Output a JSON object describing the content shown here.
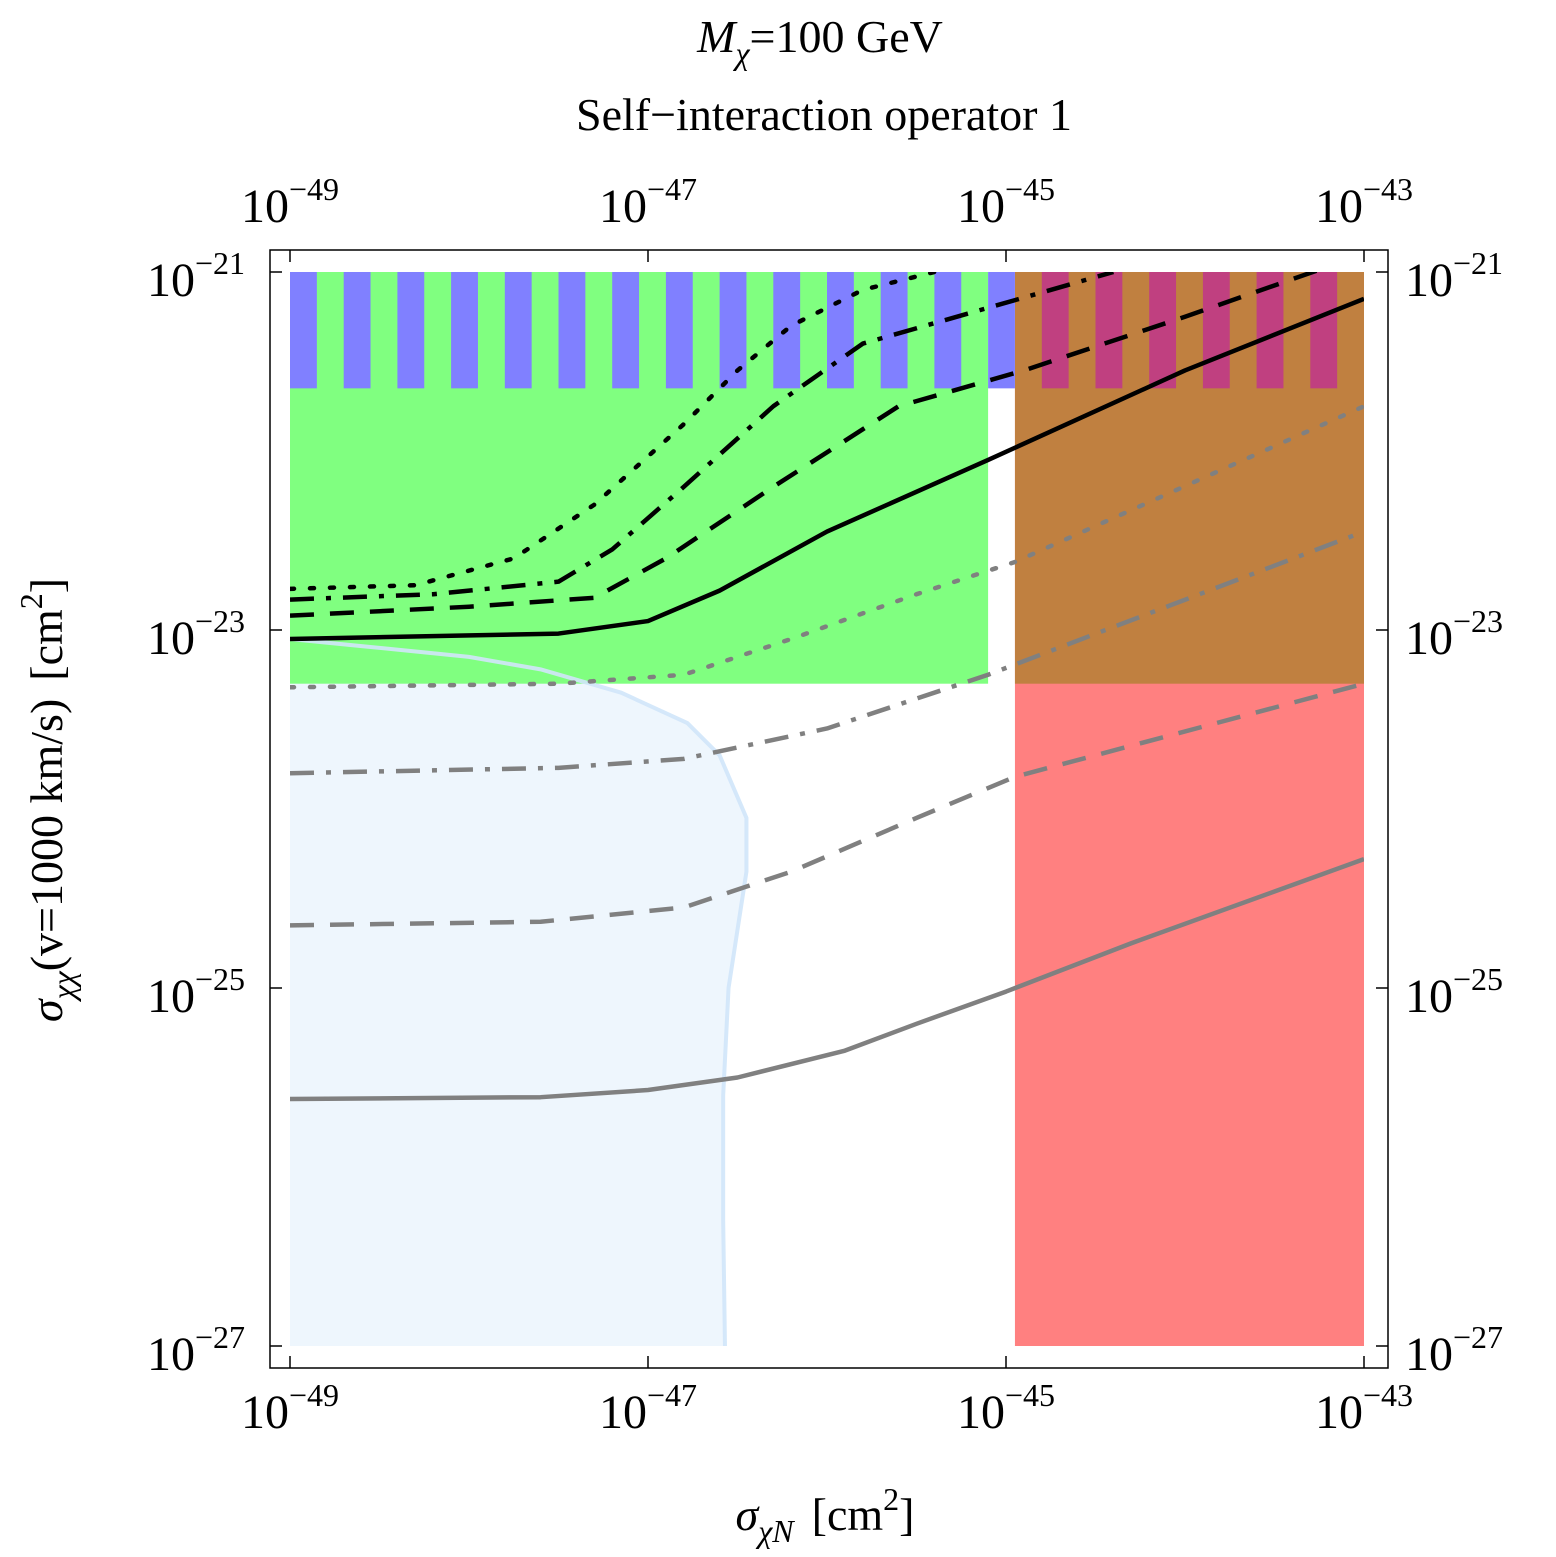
{
  "chart_data": {
    "type": "region_contour",
    "title_line1_prefix": "M",
    "title_line1_sub": "χ",
    "title_line1_suffix": "=100 GeV",
    "title_line2": "Self−interaction operator 1",
    "xlabel": {
      "symbol": "σ",
      "sub": "χN",
      "units_pre": "[cm",
      "units_sup": "2",
      "units_post": "]"
    },
    "ylabel": {
      "symbol": "σ",
      "sub": "χχ",
      "paren": "(v=1000 km/s)",
      "units_pre": "[cm",
      "units_sup": "2",
      "units_post": "]"
    },
    "x_scale": "log10",
    "y_scale": "log10",
    "xlim_log10": [
      -49,
      -43
    ],
    "ylim_log10": [
      -27,
      -21
    ],
    "x_ticks": [
      {
        "value": -49,
        "base": "10",
        "exp": "−49"
      },
      {
        "value": -47,
        "base": "10",
        "exp": "−47"
      },
      {
        "value": -45,
        "base": "10",
        "exp": "−45"
      },
      {
        "value": -43,
        "base": "10",
        "exp": "−43"
      }
    ],
    "y_ticks": [
      {
        "value": -21,
        "base": "10",
        "exp": "−21"
      },
      {
        "value": -23,
        "base": "10",
        "exp": "−23"
      },
      {
        "value": -25,
        "base": "10",
        "exp": "−25"
      },
      {
        "value": -27,
        "base": "10",
        "exp": "−27"
      }
    ],
    "colors": {
      "green": "#80ff80",
      "blue_stripe": "#8080ff",
      "red": "#ff8080",
      "brown": "#c08040",
      "magenta_stripe": "#c04080",
      "light_blue_fill": "#eef6fd",
      "light_blue_edge": "#d0e6fa",
      "black": "#000000",
      "gray": "#808080"
    },
    "regions": [
      {
        "name": "green-excluded-band",
        "x": [
          -49,
          -45.1
        ],
        "y": [
          -23.3,
          -21
        ],
        "color": "green"
      },
      {
        "name": "red-excluded-band",
        "x": [
          -44.95,
          -43
        ],
        "y": [
          -27,
          -21
        ],
        "color": "red"
      },
      {
        "name": "overlap-band",
        "x": [
          -44.95,
          -43
        ],
        "y": [
          -23.3,
          -21
        ],
        "color": "brown"
      },
      {
        "name": "stripe-band",
        "x": [
          -49,
          -43
        ],
        "y": [
          -21.65,
          -21
        ],
        "stripe_count": 20
      }
    ],
    "allowed_region": {
      "name": "light-blue-region",
      "outline": [
        [
          -49,
          -23.05
        ],
        [
          -48.6,
          -23.09
        ],
        [
          -48.0,
          -23.15
        ],
        [
          -47.6,
          -23.22
        ],
        [
          -47.15,
          -23.35
        ],
        [
          -46.78,
          -23.52
        ],
        [
          -46.6,
          -23.7
        ],
        [
          -46.45,
          -24.05
        ],
        [
          -46.45,
          -24.35
        ],
        [
          -46.55,
          -25.0
        ],
        [
          -46.58,
          -25.6
        ],
        [
          -46.58,
          -26.3
        ],
        [
          -46.57,
          -27
        ]
      ]
    },
    "series": [
      {
        "name": "black-solid",
        "color": "black",
        "dash": "solid",
        "points": [
          [
            -49,
            -23.05
          ],
          [
            -47.5,
            -23.02
          ],
          [
            -47.0,
            -22.95
          ],
          [
            -46.6,
            -22.78
          ],
          [
            -46.0,
            -22.45
          ],
          [
            -45.1,
            -22.05
          ],
          [
            -44.0,
            -21.55
          ],
          [
            -43,
            -21.15
          ]
        ]
      },
      {
        "name": "black-dashed",
        "color": "black",
        "dash": "dashed",
        "points": [
          [
            -49,
            -22.92
          ],
          [
            -48.0,
            -22.87
          ],
          [
            -47.3,
            -22.82
          ],
          [
            -46.9,
            -22.6
          ],
          [
            -46.3,
            -22.2
          ],
          [
            -45.6,
            -21.75
          ],
          [
            -44.9,
            -21.55
          ],
          [
            -44.0,
            -21.25
          ],
          [
            -43.0,
            -20.9
          ]
        ]
      },
      {
        "name": "black-dashdot",
        "color": "black",
        "dash": "dashdot",
        "points": [
          [
            -49,
            -22.83
          ],
          [
            -48.2,
            -22.8
          ],
          [
            -47.5,
            -22.73
          ],
          [
            -47.2,
            -22.55
          ],
          [
            -46.8,
            -22.2
          ],
          [
            -46.3,
            -21.75
          ],
          [
            -45.8,
            -21.4
          ],
          [
            -45.1,
            -21.2
          ],
          [
            -44.4,
            -21.0
          ]
        ]
      },
      {
        "name": "black-dotted",
        "color": "black",
        "dash": "dotted",
        "points": [
          [
            -49,
            -22.77
          ],
          [
            -48.3,
            -22.75
          ],
          [
            -47.75,
            -22.6
          ],
          [
            -47.3,
            -22.3
          ],
          [
            -46.8,
            -21.85
          ],
          [
            -46.5,
            -21.55
          ],
          [
            -46.2,
            -21.3
          ],
          [
            -45.8,
            -21.1
          ],
          [
            -45.4,
            -21.0
          ]
        ]
      },
      {
        "name": "gray-dotted",
        "color": "gray",
        "dash": "dotted",
        "points": [
          [
            -49,
            -23.32
          ],
          [
            -47.5,
            -23.3
          ],
          [
            -46.8,
            -23.25
          ],
          [
            -46.2,
            -23.05
          ],
          [
            -45.5,
            -22.8
          ],
          [
            -44.95,
            -22.62
          ],
          [
            -43.0,
            -21.75
          ]
        ]
      },
      {
        "name": "gray-dashdot",
        "color": "gray",
        "dash": "dashdot",
        "points": [
          [
            -49,
            -23.8
          ],
          [
            -47.5,
            -23.77
          ],
          [
            -46.8,
            -23.72
          ],
          [
            -46.0,
            -23.55
          ],
          [
            -45.1,
            -23.25
          ],
          [
            -43.0,
            -22.45
          ]
        ]
      },
      {
        "name": "gray-dashed",
        "color": "gray",
        "dash": "dashed",
        "points": [
          [
            -49,
            -24.65
          ],
          [
            -47.6,
            -24.63
          ],
          [
            -46.8,
            -24.55
          ],
          [
            -46.2,
            -24.35
          ],
          [
            -45.5,
            -24.05
          ],
          [
            -44.95,
            -23.82
          ],
          [
            -43.0,
            -23.3
          ]
        ]
      },
      {
        "name": "gray-solid",
        "color": "gray",
        "dash": "solid",
        "points": [
          [
            -49,
            -25.62
          ],
          [
            -47.6,
            -25.61
          ],
          [
            -47.0,
            -25.57
          ],
          [
            -46.5,
            -25.5
          ],
          [
            -45.9,
            -25.35
          ],
          [
            -45.5,
            -25.2
          ],
          [
            -45.0,
            -25.02
          ],
          [
            -44.3,
            -24.75
          ],
          [
            -43.0,
            -24.28
          ]
        ]
      }
    ]
  }
}
